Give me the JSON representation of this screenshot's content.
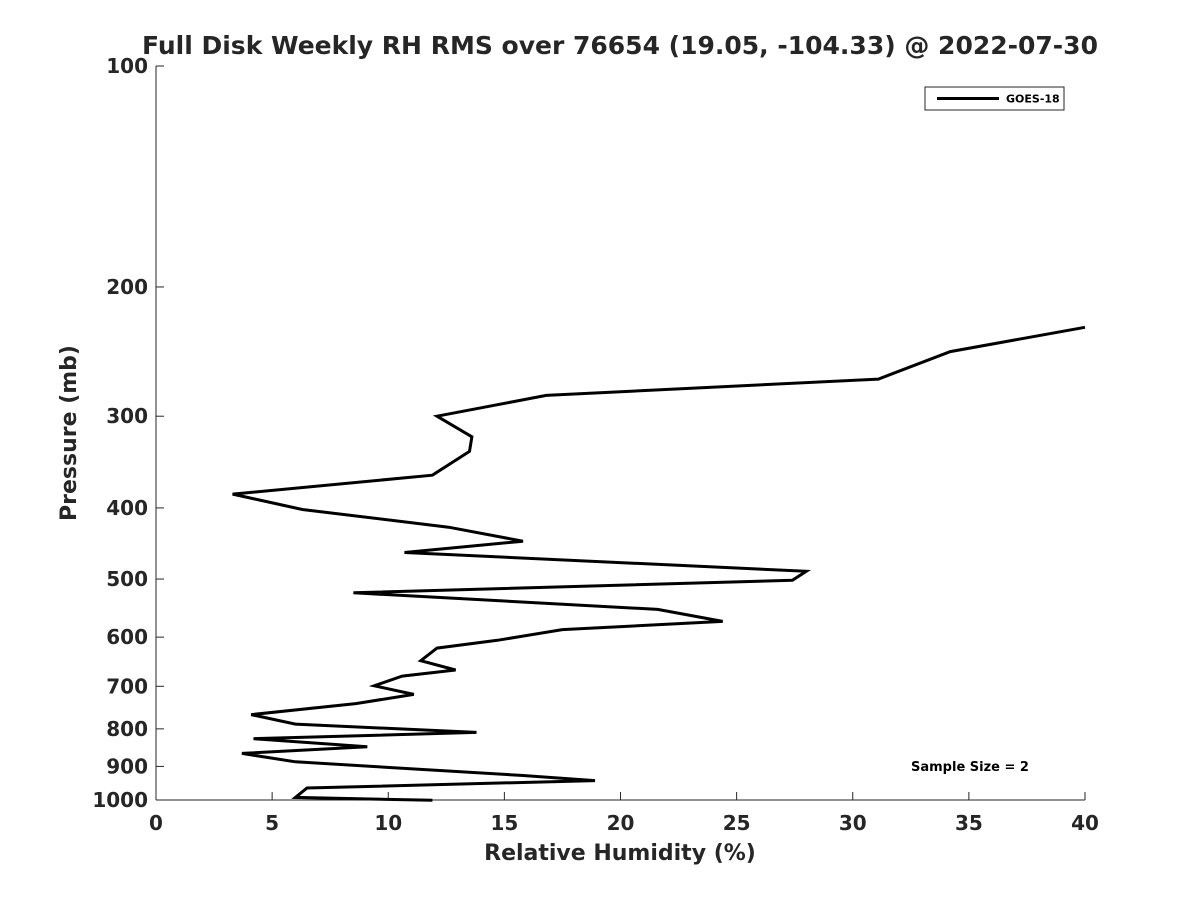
{
  "chart_data": {
    "type": "line",
    "title": "Full Disk Weekly RH RMS over 76654 (19.05, -104.33) @ 2022-07-30",
    "xlabel": "Relative Humidity (%)",
    "ylabel": "Pressure (mb)",
    "xlim": [
      0,
      40
    ],
    "ylim": [
      100,
      1000
    ],
    "yscale": "log",
    "yreversed": true,
    "xticks": [
      0,
      5,
      10,
      15,
      20,
      25,
      30,
      35,
      40
    ],
    "yticks": [
      100,
      200,
      300,
      400,
      500,
      600,
      700,
      800,
      900,
      1000
    ],
    "grid": false,
    "legend_location": "top-right",
    "series": [
      {
        "name": "GOES-18",
        "color": "#000000",
        "x": [
          40.0,
          34.2,
          31.1,
          16.8,
          12.1,
          13.6,
          13.5,
          11.9,
          3.3,
          6.3,
          12.6,
          15.8,
          10.7,
          28.0,
          27.4,
          8.5,
          21.6,
          24.4,
          17.5,
          14.7,
          12.1,
          11.4,
          12.9,
          10.6,
          9.4,
          11.1,
          8.6,
          4.1,
          6.0,
          13.8,
          4.2,
          9.1,
          3.7,
          6.0,
          15.8,
          18.9,
          6.5,
          6.0,
          11.9
        ],
        "y": [
          227,
          245,
          267,
          281,
          300,
          320,
          335,
          361,
          383,
          402,
          425,
          444,
          460,
          488,
          502,
          522,
          550,
          571,
          586,
          606,
          621,
          646,
          665,
          678,
          699,
          718,
          739,
          765,
          788,
          809,
          825,
          846,
          864,
          887,
          926,
          941,
          963,
          992,
          1001
        ]
      }
    ],
    "annotations": [
      "Sample Size = 2"
    ]
  }
}
